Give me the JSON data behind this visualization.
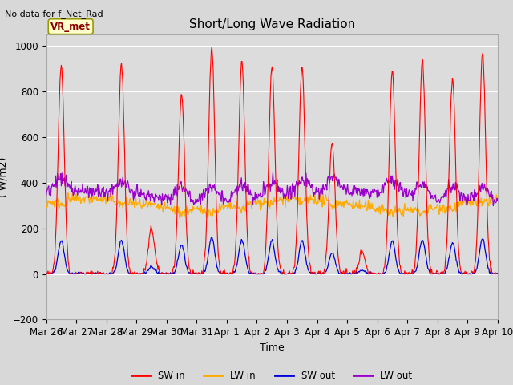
{
  "title": "Short/Long Wave Radiation",
  "xlabel": "Time",
  "ylabel": "( W/m2)",
  "no_data_label": "No data for f_Net_Rad",
  "station_label": "VR_met",
  "ylim": [
    -200,
    1050
  ],
  "n_days": 15,
  "background_color": "#dcdcdc",
  "grid_color": "#ffffff",
  "fig_bg": "#d8d8d8",
  "colors": {
    "SW_in": "#ff0000",
    "LW_in": "#ffaa00",
    "SW_out": "#0000dd",
    "LW_out": "#9900cc"
  },
  "tick_labels": [
    "Mar 26",
    "Mar 27",
    "Mar 28",
    "Mar 29",
    "Mar 30",
    "Mar 31",
    "Apr 1",
    "Apr 2",
    "Apr 3",
    "Apr 4",
    "Apr 5",
    "Apr 6",
    "Apr 7",
    "Apr 8",
    "Apr 9",
    "Apr 10"
  ],
  "legend_labels": [
    "SW in",
    "LW in",
    "SW out",
    "LW out"
  ],
  "peaks_SW": [
    920,
    0,
    920,
    200,
    790,
    1000,
    930,
    910,
    910,
    580,
    100,
    890,
    940,
    860,
    970
  ],
  "widths_SW": [
    0.1,
    0.1,
    0.1,
    0.1,
    0.1,
    0.1,
    0.1,
    0.1,
    0.1,
    0.1,
    0.1,
    0.1,
    0.1,
    0.1,
    0.1
  ]
}
